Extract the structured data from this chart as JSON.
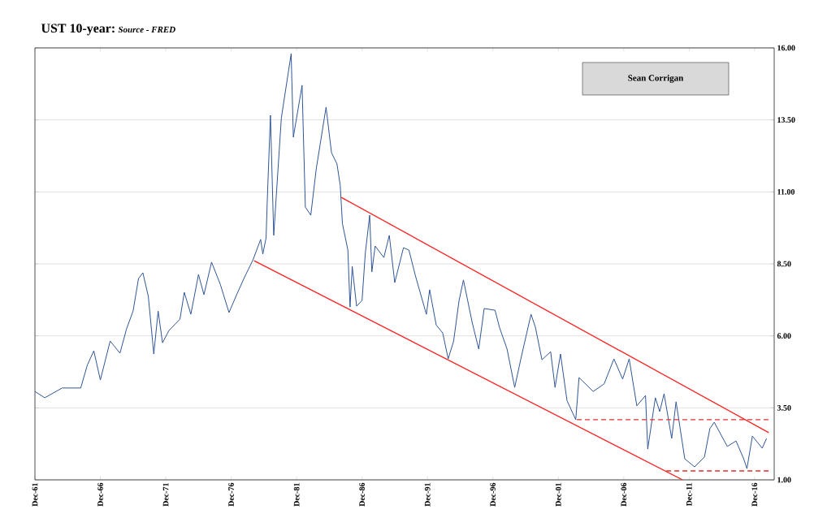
{
  "chart_data": {
    "type": "line",
    "title": "UST 10-year:",
    "annotations": [
      "Source - FRED",
      "Sean Corrigan"
    ],
    "x": [
      "1961-12",
      "1962-09",
      "1964-01",
      "1965-06",
      "1965-12",
      "1966-06",
      "1966-12",
      "1967-09",
      "1968-06",
      "1968-12",
      "1969-06",
      "1969-11",
      "1970-03",
      "1970-08",
      "1971-01",
      "1971-05",
      "1971-09",
      "1972-03",
      "1973-01",
      "1973-05",
      "1973-11",
      "1974-06",
      "1974-11",
      "1975-06",
      "1976-02",
      "1976-10",
      "1977-05",
      "1977-12",
      "1978-08",
      "1979-03",
      "1979-05",
      "1979-08",
      "1979-09",
      "1979-12",
      "1980-03",
      "1980-10",
      "1981-07",
      "1981-09",
      "1982-05",
      "1982-08",
      "1983-01",
      "1983-06",
      "1984-03",
      "1984-08",
      "1985-01",
      "1985-04",
      "1985-06",
      "1985-11",
      "1986-01",
      "1986-03",
      "1986-07",
      "1986-12",
      "1987-03",
      "1987-07",
      "1987-09",
      "1987-12",
      "1988-08",
      "1989-01",
      "1989-06",
      "1990-02",
      "1990-07",
      "1991-01",
      "1991-11",
      "1992-02",
      "1992-08",
      "1993-02",
      "1993-07",
      "1993-12",
      "1994-05",
      "1994-09",
      "1995-05",
      "1995-11",
      "1996-04",
      "1997-02",
      "1997-06",
      "1998-01",
      "1998-08",
      "1999-02",
      "1999-11",
      "2000-03",
      "2000-09",
      "2001-05",
      "2001-09",
      "2002-02",
      "2002-08",
      "2003-04",
      "2003-07",
      "2004-08",
      "2005-06",
      "2006-03",
      "2006-11",
      "2007-05",
      "2007-12",
      "2008-08",
      "2008-10",
      "2009-05",
      "2009-09",
      "2010-01",
      "2010-08",
      "2010-12",
      "2011-08",
      "2012-05",
      "2013-02",
      "2013-07",
      "2013-11",
      "2014-11",
      "2015-07",
      "2016-02",
      "2016-05",
      "2016-10",
      "2017-07",
      "2017-11"
    ],
    "series": [
      {
        "color": "#2f5597",
        "values": [
          4.07,
          3.85,
          4.19,
          4.19,
          4.98,
          5.48,
          4.47,
          5.82,
          5.4,
          6.24,
          6.86,
          7.99,
          8.19,
          7.37,
          5.37,
          6.86,
          5.76,
          6.19,
          6.58,
          7.51,
          6.75,
          8.13,
          7.43,
          8.56,
          7.79,
          6.81,
          7.43,
          8.02,
          8.64,
          9.35,
          8.84,
          9.4,
          10.61,
          13.66,
          9.49,
          13.57,
          15.8,
          12.9,
          14.7,
          10.47,
          10.19,
          11.8,
          13.94,
          12.36,
          11.97,
          11.23,
          9.9,
          8.98,
          7.0,
          8.41,
          7.03,
          7.23,
          8.87,
          10.19,
          8.22,
          9.12,
          8.72,
          9.49,
          7.85,
          9.06,
          8.98,
          8.08,
          6.75,
          7.6,
          6.38,
          6.1,
          5.2,
          5.82,
          7.23,
          7.94,
          6.47,
          5.54,
          6.95,
          6.89,
          6.3,
          5.54,
          4.21,
          5.26,
          6.75,
          6.3,
          5.17,
          5.45,
          4.21,
          5.37,
          3.75,
          3.09,
          4.55,
          4.07,
          4.33,
          5.2,
          4.5,
          5.2,
          3.57,
          3.93,
          2.07,
          3.85,
          3.37,
          3.99,
          2.44,
          3.71,
          1.73,
          1.45,
          1.79,
          2.78,
          3.0,
          2.16,
          2.35,
          1.73,
          1.39,
          2.52,
          2.1,
          2.44
        ]
      },
      {
        "type": "line",
        "color": "#ff2020",
        "line_style": "solid",
        "x": [
          "1985-05",
          "2018-01"
        ],
        "values": [
          10.81,
          2.64
        ]
      },
      {
        "type": "line",
        "color": "#ff2020",
        "line_style": "solid",
        "x": [
          "1978-09",
          "2011-06"
        ],
        "values": [
          8.61,
          1.0
        ]
      },
      {
        "type": "line",
        "color": "#e03030",
        "line_style": "dashed",
        "x": [
          "2003-05",
          "2018-01"
        ],
        "values": [
          3.09,
          3.09
        ]
      },
      {
        "type": "line",
        "color": "#e03030",
        "line_style": "dashed",
        "x": [
          "2010-03",
          "2018-01"
        ],
        "values": [
          1.31,
          1.31
        ]
      }
    ],
    "xlim": [
      "1961-12",
      "2018-06"
    ],
    "ylim": [
      1,
      16
    ],
    "xticks": [
      {
        "value": "1961-12",
        "label": "Dec-61"
      },
      {
        "value": "1966-12",
        "label": "Dec-66"
      },
      {
        "value": "1971-12",
        "label": "Dec-71"
      },
      {
        "value": "1976-12",
        "label": "Dec-76"
      },
      {
        "value": "1981-12",
        "label": "Dec-81"
      },
      {
        "value": "1986-12",
        "label": "Dec-86"
      },
      {
        "value": "1991-12",
        "label": "Dec-91"
      },
      {
        "value": "1996-12",
        "label": "Dec-96"
      },
      {
        "value": "2001-12",
        "label": "Dec-01"
      },
      {
        "value": "2006-12",
        "label": "Dec-06"
      },
      {
        "value": "2011-12",
        "label": "Dec-11"
      },
      {
        "value": "2016-12",
        "label": "Dec-16"
      }
    ],
    "yticks": [
      {
        "value": 1,
        "label": "1.00"
      },
      {
        "value": 3.5,
        "label": "3.50"
      },
      {
        "value": 6,
        "label": "6.00"
      },
      {
        "value": 8.5,
        "label": "8.50"
      },
      {
        "value": 11,
        "label": "11.00"
      },
      {
        "value": 13.5,
        "label": "13.50"
      },
      {
        "value": 16,
        "label": "16.00"
      }
    ],
    "grid": "y"
  }
}
